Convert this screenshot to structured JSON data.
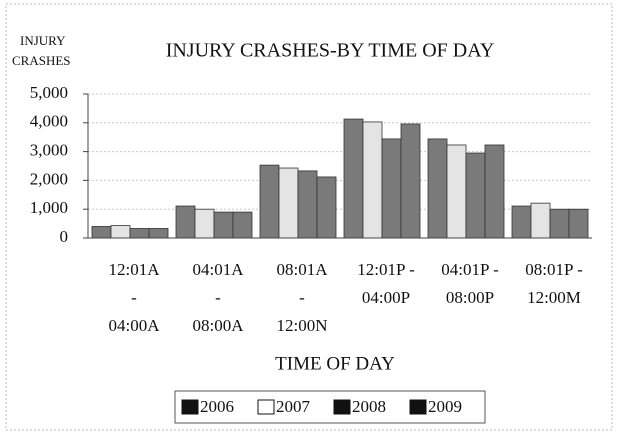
{
  "chart_data": {
    "type": "bar",
    "title": "INJURY CRASHES-BY TIME OF DAY",
    "y_label": [
      "INJURY",
      "CRASHES"
    ],
    "x_label": "TIME OF DAY",
    "categories": [
      [
        "12:01A",
        "-",
        "04:00A"
      ],
      [
        "04:01A",
        "-",
        "08:00A"
      ],
      [
        "08:01A",
        "-",
        "12:00N"
      ],
      [
        "12:01P -",
        "04:00P"
      ],
      [
        "04:01P -",
        "08:00P"
      ],
      [
        "08:01P -",
        "12:00M"
      ]
    ],
    "series": [
      {
        "name": "2006",
        "color": "#7a7a7a",
        "values": [
          400,
          1110,
          2530,
          4130,
          3440,
          1110
        ]
      },
      {
        "name": "2007",
        "color": "#e4e4e4",
        "values": [
          430,
          1000,
          2430,
          4030,
          3230,
          1210
        ]
      },
      {
        "name": "2008",
        "color": "#7a7a7a",
        "values": [
          330,
          900,
          2330,
          3440,
          2950,
          1000
        ]
      },
      {
        "name": "2009",
        "color": "#7a7a7a",
        "values": [
          330,
          900,
          2120,
          3960,
          3230,
          1000
        ]
      }
    ],
    "ylim": [
      0,
      5000
    ],
    "yticks": [
      0,
      {
        "value": 1000,
        "label": "1,000"
      },
      {
        "value": 2000,
        "label": "2,000"
      },
      {
        "value": 3000,
        "label": "3,000"
      },
      {
        "value": 4000,
        "label": "4,000"
      },
      {
        "value": 5000,
        "label": "5,000"
      }
    ],
    "grid": true,
    "legend": "bottom"
  }
}
